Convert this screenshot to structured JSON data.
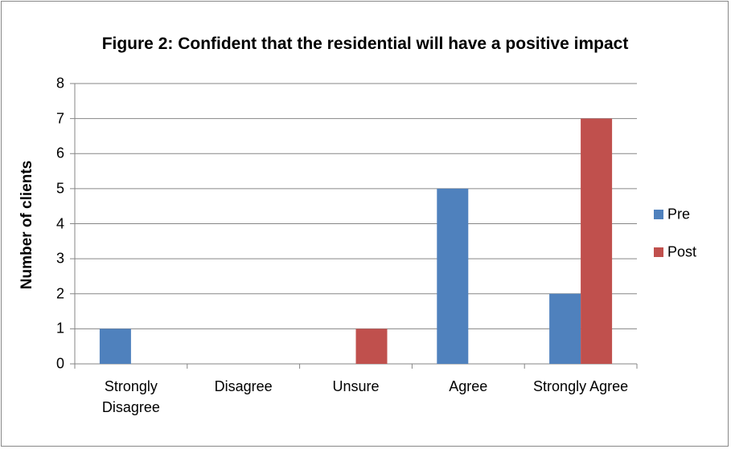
{
  "chart_data": {
    "type": "bar",
    "title": "Figure 2: Confident that the residential will have a positive impact",
    "ylabel": "Number of clients",
    "categories": [
      "Strongly Disagree",
      "Disagree",
      "Unsure",
      "Agree",
      "Strongly Agree"
    ],
    "series": [
      {
        "name": "Pre",
        "color": "#4f81bd",
        "values": [
          1,
          0,
          0,
          5,
          2
        ]
      },
      {
        "name": "Post",
        "color": "#c0504d",
        "values": [
          0,
          0,
          1,
          0,
          7
        ]
      }
    ],
    "ylim": [
      0,
      8
    ],
    "yticks": [
      0,
      1,
      2,
      3,
      4,
      5,
      6,
      7,
      8
    ],
    "grid": true,
    "legend": "right"
  }
}
